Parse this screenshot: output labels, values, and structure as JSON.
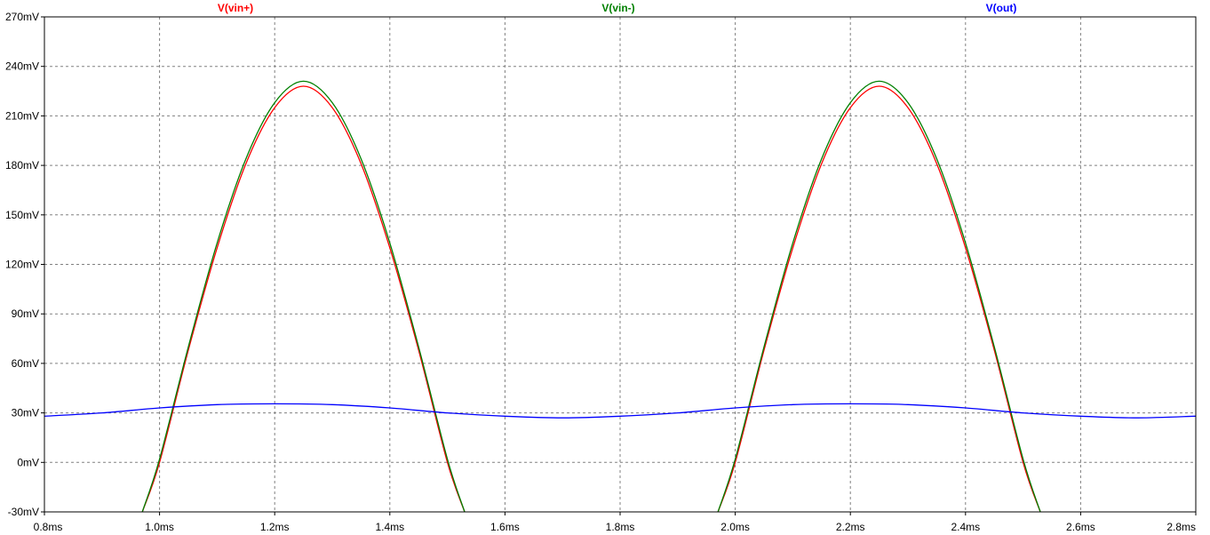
{
  "window": {
    "background": "#ffffff"
  },
  "chart_data": {
    "type": "line",
    "title": "",
    "xlabel": "",
    "ylabel": "",
    "x_unit": "ms",
    "y_unit": "mV",
    "xlim": [
      0.8,
      2.8
    ],
    "ylim": [
      -30,
      270
    ],
    "x_ticks": [
      0.8,
      1.0,
      1.2,
      1.4,
      1.6,
      1.8,
      2.0,
      2.2,
      2.4,
      2.6,
      2.8
    ],
    "x_tick_labels": [
      "0.8ms",
      "1.0ms",
      "1.2ms",
      "1.4ms",
      "1.6ms",
      "1.8ms",
      "2.0ms",
      "2.2ms",
      "2.4ms",
      "2.6ms",
      "2.8ms"
    ],
    "y_ticks": [
      -30,
      0,
      30,
      60,
      90,
      120,
      150,
      180,
      210,
      240,
      270
    ],
    "y_tick_labels": [
      "-30mV",
      "0mV",
      "30mV",
      "60mV",
      "90mV",
      "120mV",
      "150mV",
      "180mV",
      "210mV",
      "240mV",
      "270mV"
    ],
    "grid": true,
    "grid_style": "dashed",
    "legend_placement": "top",
    "series": [
      {
        "name": "V(vin+)",
        "color": "#ff0000",
        "x": [
          0.97,
          1.0,
          1.05,
          1.1,
          1.15,
          1.2,
          1.25,
          1.3,
          1.35,
          1.4,
          1.45,
          1.5,
          1.53,
          1.97,
          2.0,
          2.05,
          2.1,
          2.15,
          2.2,
          2.25,
          2.3,
          2.35,
          2.4,
          2.45,
          2.5,
          2.53
        ],
        "y": [
          -30,
          0,
          68,
          130,
          181,
          215,
          228,
          215,
          181,
          130,
          68,
          0,
          -30,
          -30,
          0,
          68,
          130,
          181,
          215,
          228,
          215,
          181,
          130,
          68,
          0,
          -30
        ]
      },
      {
        "name": "V(vin-)",
        "color": "#008000",
        "x": [
          0.97,
          1.0,
          1.05,
          1.1,
          1.15,
          1.2,
          1.25,
          1.3,
          1.35,
          1.4,
          1.45,
          1.5,
          1.53,
          1.97,
          2.0,
          2.05,
          2.1,
          2.15,
          2.2,
          2.25,
          2.3,
          2.35,
          2.4,
          2.45,
          2.5,
          2.53
        ],
        "y": [
          -30,
          2,
          70,
          133,
          184,
          218,
          231,
          218,
          184,
          133,
          70,
          2,
          -30,
          -30,
          2,
          70,
          133,
          184,
          218,
          231,
          218,
          184,
          133,
          70,
          2,
          -30
        ]
      },
      {
        "name": "V(out)",
        "color": "#0000ff",
        "x": [
          0.8,
          0.9,
          1.0,
          1.1,
          1.2,
          1.3,
          1.4,
          1.5,
          1.6,
          1.7,
          1.8,
          1.9,
          2.0,
          2.1,
          2.2,
          2.3,
          2.4,
          2.5,
          2.6,
          2.7,
          2.8
        ],
        "y": [
          28,
          30,
          33,
          35,
          35.5,
          35,
          33,
          30,
          28,
          27,
          28,
          30,
          33,
          35,
          35.5,
          35,
          33,
          30,
          28,
          27,
          28
        ]
      }
    ]
  }
}
